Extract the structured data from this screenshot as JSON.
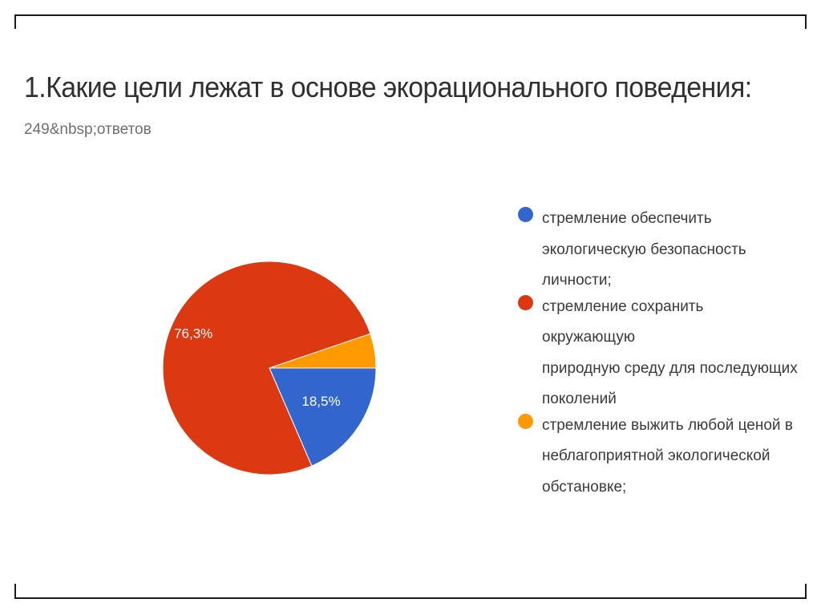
{
  "question": {
    "title": "1.Какие цели лежат в основе экорационального поведения:",
    "responses": "249&nbsp;ответов"
  },
  "colors": {
    "blue": "#3366cc",
    "red": "#dc3912",
    "orange": "#ff9900"
  },
  "chart_data": {
    "type": "pie",
    "title": "1.Какие цели лежат в основе экорационального поведения:",
    "labels": [
      "стремление обеспечить экологическую безопасность личности;",
      "стремление сохранить окружающую природную среду для последующих поколений",
      "стремление выжить любой ценой в неблагоприятной экологической обстановке;"
    ],
    "values": [
      18.5,
      76.3,
      5.2
    ],
    "value_labels": [
      "18,5%",
      "76,3%",
      ""
    ],
    "colors": [
      "#3366cc",
      "#dc3912",
      "#ff9900"
    ],
    "legend_position": "right"
  },
  "legend": [
    {
      "color": "#3366cc",
      "lines": [
        "стремление обеспечить",
        "экологическую безопасность",
        "личности;"
      ]
    },
    {
      "color": "#dc3912",
      "lines": [
        "стремление сохранить окружающую",
        "природную среду для последующих",
        "поколений"
      ]
    },
    {
      "color": "#ff9900",
      "lines": [
        "стремление выжить любой ценой в",
        "неблагоприятной экологической",
        "обстановке;"
      ]
    }
  ]
}
